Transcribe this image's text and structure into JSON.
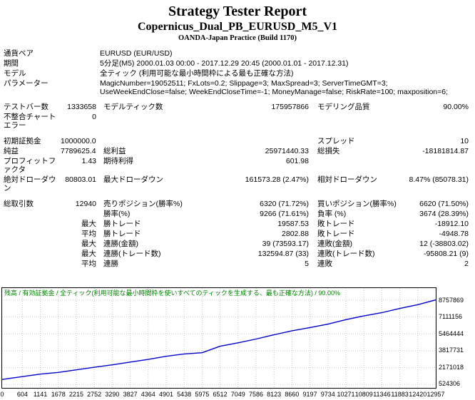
{
  "header": {
    "title": "Strategy Tester Report",
    "subtitle": "Copernicus_Dual_PB_EURUSD_M5_V1",
    "build": "OANDA-Japan Practice (Build 1170)"
  },
  "info": [
    {
      "label": "通貨ペア",
      "value": "EURUSD (EUR/USD)"
    },
    {
      "label": "期間",
      "value": "5分足(M5) 2000.01.03 00:00 - 2017.12.29 20:45 (2000.01.01 - 2017.12.31)"
    },
    {
      "label": "モデル",
      "value": "全ティック (利用可能な最小時間枠による最も正確な方法)"
    },
    {
      "label": "パラメーター",
      "value": "MagicNumber=19052511; FxLots=0.2; Slippage=3; MaxSpread=3; ServerTimeGMT=3; UseWeekEndClose=false; WeekEndCloseTime=-1; MoneyManage=false; RiskRate=100; maxposition=6;"
    }
  ],
  "stats_rows": [
    {
      "cells": [
        "テストバー数",
        "1333658",
        "モデルティック数",
        "175957866",
        "モデリング品質",
        "90.00%"
      ]
    },
    {
      "cells": [
        "不整合チャートエラー",
        "0",
        "",
        "",
        "",
        ""
      ]
    },
    {
      "spacer": true
    },
    {
      "cells": [
        "初期証拠金",
        "1000000.00",
        "",
        "",
        "スプレッド",
        "10"
      ]
    },
    {
      "cells": [
        "純益",
        "7789625.46",
        "総利益",
        "25971440.33",
        "総損失",
        "-18181814.87"
      ]
    },
    {
      "cells": [
        "プロフィットファクタ",
        "1.43",
        "期待利得",
        "601.98",
        "",
        ""
      ]
    },
    {
      "cells": [
        "絶対ドローダウン",
        "80803.01",
        "最大ドローダウン",
        "161573.28 (2.47%)",
        "相対ドローダウン",
        "8.47% (85078.31)"
      ]
    },
    {
      "spacer": true
    },
    {
      "cells": [
        "総取引数",
        "12940",
        "売りポジション(勝率%)",
        "6320 (71.72%)",
        "買いポジション(勝率%)",
        "6620 (71.50%)"
      ]
    },
    {
      "cells": [
        "",
        "",
        "勝率(%)",
        "9266 (71.61%)",
        "負率 (%)",
        "3674 (28.39%)"
      ]
    },
    {
      "cells": [
        "",
        "最大",
        "勝トレード",
        "19587.53",
        "敗トレード",
        "-18912.10"
      ]
    },
    {
      "cells": [
        "",
        "平均",
        "勝トレード",
        "2802.88",
        "敗トレード",
        "-4948.78"
      ]
    },
    {
      "cells": [
        "",
        "最大",
        "連勝(金額)",
        "39 (73593.17)",
        "連敗(金額)",
        "12 (-38803.02)"
      ]
    },
    {
      "cells": [
        "",
        "最大",
        "連勝(トレード数)",
        "132594.87 (33)",
        "連敗(トレード数)",
        "-95808.21 (9)"
      ]
    },
    {
      "cells": [
        "",
        "平均",
        "連勝",
        "5",
        "連敗",
        "2"
      ]
    }
  ],
  "chart_data": {
    "type": "line",
    "title": "残高 / 有効証拠金 / 全ティック(利用可能な最小時間枠を使いすべてのティックを生成する、最も正確な方法) / 90.00%",
    "xlabel": "",
    "ylabel": "",
    "legend_color": "#008000",
    "line_color": "#0000c8",
    "grid_color": "#c8c8c8",
    "grid": "dotted",
    "xlim": [
      0,
      12957
    ],
    "ylim": [
      175000,
      9950000
    ],
    "x_ticks": [
      0,
      604,
      1141,
      1678,
      2215,
      2752,
      3290,
      3827,
      4364,
      4901,
      5438,
      5975,
      6512,
      7049,
      7586,
      8123,
      8660,
      9197,
      9734,
      10271,
      10809,
      11346,
      11883,
      12420,
      12957
    ],
    "y_ticks": [
      524306,
      2171018,
      3817731,
      5464444,
      7111156,
      8757869
    ],
    "series": [
      {
        "name": "残高",
        "x": [
          0,
          604,
          1141,
          1678,
          2215,
          2752,
          3290,
          3827,
          4364,
          4901,
          5438,
          5975,
          6512,
          7049,
          7586,
          8123,
          8660,
          9197,
          9734,
          10271,
          10809,
          11346,
          11883,
          12420,
          12957
        ],
        "values": [
          1000000,
          1280000,
          1520000,
          1690000,
          1940000,
          2190000,
          2430000,
          2700000,
          2960000,
          3270000,
          3500000,
          3620000,
          4250000,
          4590000,
          4960000,
          5380000,
          5770000,
          6080000,
          6420000,
          6860000,
          7230000,
          7540000,
          7950000,
          8320000,
          8789625
        ]
      }
    ]
  }
}
